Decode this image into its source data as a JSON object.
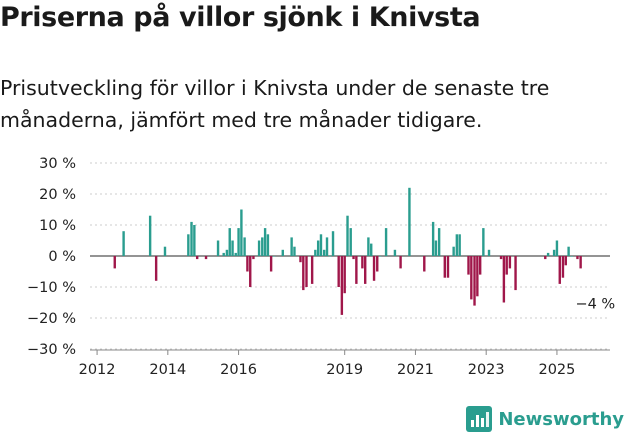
{
  "header": {
    "title": "Priserna på villor sjönk i Knivsta",
    "subtitle": "Prisutveckling för villor i Knivsta under de senaste tre månaderna, jämfört med tre månader tidigare."
  },
  "brand": {
    "name": "Newsworthy"
  },
  "colors": {
    "positive": "#2a9d8f",
    "negative": "#a0174a",
    "grid": "#cccccc",
    "brand": "#2a9d8f"
  },
  "chart_data": {
    "type": "bar",
    "title": "Priserna på villor sjönk i Knivsta",
    "xlabel": "",
    "ylabel": "",
    "x_ticks": [
      "2012",
      "2014",
      "2016",
      "2019",
      "2021",
      "2023",
      "2025"
    ],
    "x_tick_values": [
      2012.0,
      2014.0,
      2016.0,
      2019.0,
      2021.0,
      2023.0,
      2025.0
    ],
    "y_ticks": [
      "30 %",
      "20 %",
      "10 %",
      "0 %",
      "−10 %",
      "−20 %",
      "−30 %"
    ],
    "y_tick_values": [
      30,
      20,
      10,
      0,
      -10,
      -20,
      -30
    ],
    "xlim": [
      2011.8,
      2026.5
    ],
    "ylim": [
      -30,
      30
    ],
    "annotation": {
      "label": "−4 %",
      "x": 2025.58,
      "y": -4
    },
    "x": [
      2012.5,
      2012.75,
      2013.5,
      2013.67,
      2013.92,
      2014.58,
      2014.67,
      2014.75,
      2014.83,
      2015.08,
      2015.42,
      2015.58,
      2015.67,
      2015.75,
      2015.83,
      2015.92,
      2016.0,
      2016.08,
      2016.17,
      2016.25,
      2016.33,
      2016.42,
      2016.58,
      2016.67,
      2016.75,
      2016.83,
      2016.92,
      2017.0,
      2017.25,
      2017.5,
      2017.58,
      2017.75,
      2017.83,
      2017.92,
      2018.08,
      2018.17,
      2018.25,
      2018.33,
      2018.42,
      2018.5,
      2018.58,
      2018.67,
      2018.83,
      2018.92,
      2019.0,
      2019.08,
      2019.17,
      2019.25,
      2019.33,
      2019.5,
      2019.58,
      2019.67,
      2019.75,
      2019.83,
      2019.92,
      2020.0,
      2020.17,
      2020.42,
      2020.58,
      2020.83,
      2021.25,
      2021.5,
      2021.58,
      2021.67,
      2021.83,
      2021.92,
      2022.08,
      2022.17,
      2022.25,
      2022.5,
      2022.58,
      2022.67,
      2022.75,
      2022.83,
      2022.92,
      2023.08,
      2023.42,
      2023.5,
      2023.58,
      2023.67,
      2023.83,
      2024.67,
      2024.75,
      2024.92,
      2025.0,
      2025.08,
      2025.17,
      2025.25,
      2025.33,
      2025.42,
      2025.58,
      2025.67
    ],
    "values": [
      -4,
      8,
      13,
      -8,
      3,
      7,
      11,
      10,
      -1,
      -1,
      5,
      1,
      2,
      9,
      5,
      1,
      9,
      15,
      6,
      -5,
      -10,
      -1,
      5,
      6,
      9,
      7,
      -5,
      0,
      2,
      6,
      3,
      -2,
      -11,
      -10,
      -9,
      2,
      5,
      7,
      2,
      6,
      0,
      8,
      -10,
      -19,
      -12,
      13,
      9,
      -1,
      -9,
      -4,
      -9,
      6,
      4,
      -8,
      -5,
      0,
      9,
      2,
      -4,
      22,
      -5,
      11,
      5,
      9,
      -7,
      -7,
      3,
      7,
      7,
      -6,
      -14,
      -16,
      -13,
      -6,
      9,
      2,
      -1,
      -15,
      -6,
      -4,
      -11,
      -1,
      1,
      2,
      5,
      -9,
      -7,
      -3,
      3,
      0,
      -1,
      -4
    ]
  }
}
